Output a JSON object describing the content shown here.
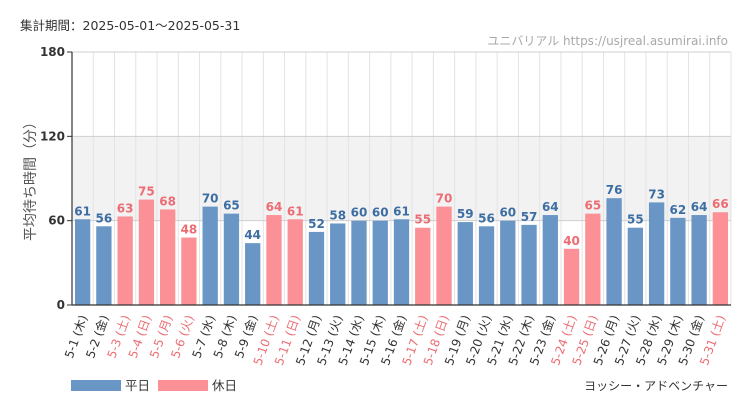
{
  "header": {
    "period": "集計期間：2025-05-01～2025-05-31",
    "site": "ユニバリアル  https://usjreal.asumirai.info"
  },
  "footer": {
    "credit": "ヨッシー・アドベンチャー"
  },
  "colors": {
    "weekday": "#6a96c6",
    "holiday": "#fb9196",
    "weekday_label": "#3d6ea3",
    "holiday_label": "#ec6d73",
    "band": "#f2f2f2",
    "grid": "#e3e3e3",
    "axis": "#333333"
  },
  "chart_data": {
    "type": "bar",
    "title": "",
    "xlabel": "",
    "ylabel": "平均待ち時間（分）",
    "ylim": [
      0,
      180
    ],
    "yticks": [
      "0",
      "60",
      "120",
      "180"
    ],
    "grid": true,
    "legend_position": "bottom-left",
    "categories": [
      "5-1 (木)",
      "5-2 (金)",
      "5-3 (土)",
      "5-4 (日)",
      "5-5 (月)",
      "5-6 (火)",
      "5-7 (水)",
      "5-8 (木)",
      "5-9 (金)",
      "5-10 (土)",
      "5-11 (日)",
      "5-12 (月)",
      "5-13 (火)",
      "5-14 (水)",
      "5-15 (木)",
      "5-16 (金)",
      "5-17 (土)",
      "5-18 (日)",
      "5-19 (月)",
      "5-20 (火)",
      "5-21 (水)",
      "5-22 (木)",
      "5-23 (金)",
      "5-24 (土)",
      "5-25 (日)",
      "5-26 (月)",
      "5-27 (火)",
      "5-28 (水)",
      "5-29 (木)",
      "5-30 (金)",
      "5-31 (土)"
    ],
    "values": [
      61,
      56,
      63,
      75,
      68,
      48,
      70,
      65,
      44,
      64,
      61,
      52,
      58,
      60,
      60,
      61,
      55,
      70,
      59,
      56,
      60,
      57,
      64,
      40,
      65,
      76,
      55,
      73,
      62,
      64,
      66
    ],
    "day_type": [
      "平日",
      "平日",
      "休日",
      "休日",
      "休日",
      "休日",
      "平日",
      "平日",
      "平日",
      "休日",
      "休日",
      "平日",
      "平日",
      "平日",
      "平日",
      "平日",
      "休日",
      "休日",
      "平日",
      "平日",
      "平日",
      "平日",
      "平日",
      "休日",
      "休日",
      "平日",
      "平日",
      "平日",
      "平日",
      "平日",
      "休日"
    ],
    "legend": [
      {
        "name": "平日",
        "color": "#6a96c6"
      },
      {
        "name": "休日",
        "color": "#fb9196"
      }
    ]
  }
}
